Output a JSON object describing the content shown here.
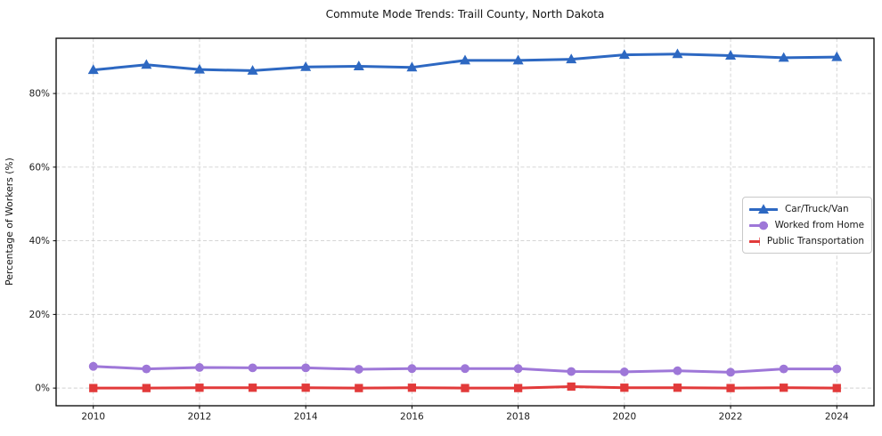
{
  "chart_data": {
    "type": "line",
    "title": "Commute Mode Trends: Traill County, North Dakota",
    "xlabel": "",
    "ylabel": "Percentage of Workers (%)",
    "x": [
      2010,
      2011,
      2012,
      2013,
      2014,
      2015,
      2016,
      2017,
      2018,
      2019,
      2020,
      2021,
      2022,
      2023,
      2024
    ],
    "series": [
      {
        "name": "Car/Truck/Van",
        "marker": "triangle",
        "color": "#2d68c2",
        "values": [
          86.4,
          87.8,
          86.5,
          86.2,
          87.2,
          87.4,
          87.1,
          89.0,
          89.0,
          89.3,
          90.5,
          90.7,
          90.3,
          89.7,
          89.9
        ]
      },
      {
        "name": "Worked from Home",
        "marker": "circle",
        "color": "#9e77d8",
        "values": [
          5.9,
          5.2,
          5.6,
          5.5,
          5.5,
          5.1,
          5.3,
          5.3,
          5.3,
          4.5,
          4.4,
          4.7,
          4.3,
          5.2,
          5.2
        ]
      },
      {
        "name": "Public Transportation",
        "marker": "square",
        "color": "#e23a3a",
        "values": [
          0.0,
          0.0,
          0.1,
          0.1,
          0.1,
          0.0,
          0.1,
          0.0,
          0.0,
          0.4,
          0.1,
          0.1,
          0.0,
          0.1,
          0.0
        ]
      }
    ],
    "xticks": [
      2010,
      2012,
      2014,
      2016,
      2018,
      2020,
      2022,
      2024
    ],
    "yticks": [
      0,
      20,
      40,
      60,
      80
    ],
    "ytick_suffix": "%",
    "xlim": [
      2009.3,
      2024.7
    ],
    "ylim": [
      -4.8,
      95.0
    ],
    "grid": true,
    "grid_style": "dashed",
    "legend_position": "center-right",
    "colors": {
      "grid": "#d0d0d0",
      "axis_frame": "#000000",
      "text": "#1a1a1a",
      "background": "#ffffff"
    }
  }
}
